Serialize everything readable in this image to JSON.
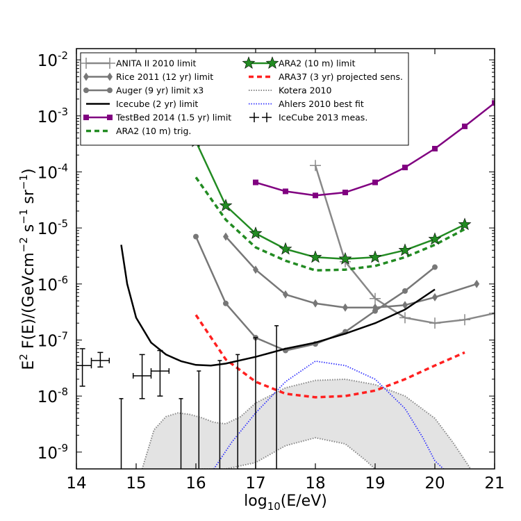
{
  "chart_data": {
    "type": "line",
    "x_scale": "linear",
    "y_scale": "log",
    "xlim": [
      14,
      21
    ],
    "ylim_log10": [
      -9.3,
      -1.8
    ],
    "x_ticks": [
      "14",
      "15",
      "16",
      "17",
      "18",
      "19",
      "20",
      "21"
    ],
    "y_ticks": [
      {
        "base": "10",
        "exp": "-9"
      },
      {
        "base": "10",
        "exp": "-8"
      },
      {
        "base": "10",
        "exp": "-7"
      },
      {
        "base": "10",
        "exp": "-6"
      },
      {
        "base": "10",
        "exp": "-5"
      },
      {
        "base": "10",
        "exp": "-4"
      },
      {
        "base": "10",
        "exp": "-3"
      },
      {
        "base": "10",
        "exp": "-2"
      }
    ],
    "xlabel": {
      "pre": "log",
      "sub": "10",
      "post": "(E/eV)"
    },
    "ylabel": {
      "p1": "E",
      "s1": "2",
      "p2": " F(E)/(GeVcm",
      "s2": "−2",
      "p3": " s",
      "s3": "−1",
      "p4": " sr",
      "s4": "−1",
      "p5": ")"
    },
    "grid": false,
    "legend_position": "top",
    "series": [
      {
        "name": "ANITA II 2010 limit",
        "color": "#888888",
        "marker": "plus",
        "linewidth": 2.5,
        "points": [
          [
            18.0,
            0.00013
          ],
          [
            18.5,
            2.5e-06
          ],
          [
            19.0,
            5.5e-07
          ],
          [
            19.5,
            2.5e-07
          ],
          [
            20.0,
            2e-07
          ],
          [
            20.5,
            2.3e-07
          ],
          [
            21.0,
            3e-07
          ]
        ]
      },
      {
        "name": "Rice 2011 (12 yr) limit",
        "color": "#777777",
        "marker": "diamond",
        "linewidth": 2.5,
        "points": [
          [
            16.5,
            7e-06
          ],
          [
            17.0,
            1.8e-06
          ],
          [
            17.5,
            6.5e-07
          ],
          [
            18.0,
            4.5e-07
          ],
          [
            18.5,
            3.8e-07
          ],
          [
            19.0,
            3.8e-07
          ],
          [
            19.5,
            4.2e-07
          ],
          [
            20.0,
            5.8e-07
          ],
          [
            20.7,
            1e-06
          ]
        ]
      },
      {
        "name": "Auger (9 yr) limit x3",
        "color": "#777777",
        "marker": "circle",
        "linewidth": 2.5,
        "points": [
          [
            16.0,
            7e-06
          ],
          [
            16.5,
            4.5e-07
          ],
          [
            17.0,
            1.1e-07
          ],
          [
            17.5,
            6.5e-08
          ],
          [
            18.0,
            8.5e-08
          ],
          [
            18.5,
            1.4e-07
          ],
          [
            19.0,
            3.3e-07
          ],
          [
            19.5,
            7.5e-07
          ],
          [
            20.0,
            2e-06
          ]
        ]
      },
      {
        "name": "Icecube (2 yr) limit",
        "color": "#000000",
        "marker": "none",
        "linewidth": 2.5,
        "points": [
          [
            14.75,
            5e-06
          ],
          [
            14.85,
            1e-06
          ],
          [
            15.0,
            2.5e-07
          ],
          [
            15.25,
            9e-08
          ],
          [
            15.5,
            5.5e-08
          ],
          [
            15.75,
            4.2e-08
          ],
          [
            16.0,
            3.6e-08
          ],
          [
            16.25,
            3.5e-08
          ],
          [
            16.5,
            3.8e-08
          ],
          [
            17.0,
            5e-08
          ],
          [
            17.5,
            7e-08
          ],
          [
            18.0,
            9e-08
          ],
          [
            18.5,
            1.3e-07
          ],
          [
            19.0,
            2e-07
          ],
          [
            19.5,
            3.5e-07
          ],
          [
            20.0,
            8e-07
          ]
        ]
      },
      {
        "name": "TestBed 2014 (1.5 yr) limit",
        "color": "#800080",
        "marker": "square",
        "linewidth": 2.5,
        "points": [
          [
            17.0,
            6.5e-05
          ],
          [
            17.5,
            4.5e-05
          ],
          [
            18.0,
            3.8e-05
          ],
          [
            18.5,
            4.3e-05
          ],
          [
            19.0,
            6.5e-05
          ],
          [
            19.5,
            0.00012
          ],
          [
            20.0,
            0.00026
          ],
          [
            20.5,
            0.00065
          ],
          [
            21.0,
            0.0017
          ]
        ]
      },
      {
        "name": "ARA2 (10 m) trig.",
        "color": "#228b22",
        "marker": "none",
        "dash": "7,5",
        "linewidth": 3.5,
        "points": [
          [
            16.0,
            8e-05
          ],
          [
            16.5,
            1.4e-05
          ],
          [
            17.0,
            4.5e-06
          ],
          [
            17.5,
            2.6e-06
          ],
          [
            18.0,
            1.75e-06
          ],
          [
            18.5,
            1.8e-06
          ],
          [
            19.0,
            2.1e-06
          ],
          [
            19.5,
            3e-06
          ],
          [
            20.0,
            5e-06
          ],
          [
            20.5,
            9.5e-06
          ]
        ]
      },
      {
        "name": "ARA2 (10 m) limit",
        "color": "#228b22",
        "marker": "star",
        "linewidth": 2.5,
        "points": [
          [
            16.0,
            0.00035
          ],
          [
            16.5,
            2.5e-05
          ],
          [
            17.0,
            8e-06
          ],
          [
            17.5,
            4.2e-06
          ],
          [
            18.0,
            3e-06
          ],
          [
            18.5,
            2.8e-06
          ],
          [
            19.0,
            3e-06
          ],
          [
            19.5,
            4e-06
          ],
          [
            20.0,
            6.3e-06
          ],
          [
            20.5,
            1.15e-05
          ]
        ]
      },
      {
        "name": "ARA37 (3 yr) projected sens.",
        "color": "#ff2020",
        "marker": "none",
        "dash": "7,5",
        "linewidth": 3.5,
        "points": [
          [
            16.0,
            2.8e-07
          ],
          [
            16.5,
            4.5e-08
          ],
          [
            17.0,
            1.8e-08
          ],
          [
            17.5,
            1.1e-08
          ],
          [
            18.0,
            9.5e-09
          ],
          [
            18.5,
            1e-08
          ],
          [
            19.0,
            1.25e-08
          ],
          [
            19.5,
            2e-08
          ],
          [
            20.0,
            3.5e-08
          ],
          [
            20.5,
            6e-08
          ]
        ]
      },
      {
        "name": "Kotera 2010",
        "color": "#888888",
        "marker": "none",
        "dash": "1.5,2",
        "linewidth": 2,
        "band_upper": [
          [
            15.1,
            5e-10
          ],
          [
            15.3,
            2.5e-09
          ],
          [
            15.5,
            4.3e-09
          ],
          [
            15.7,
            5e-09
          ],
          [
            15.9,
            4.7e-09
          ],
          [
            16.1,
            4.1e-09
          ],
          [
            16.3,
            3.4e-09
          ],
          [
            16.5,
            3.2e-09
          ],
          [
            16.75,
            4.3e-09
          ],
          [
            17.0,
            7.5e-09
          ],
          [
            17.5,
            1.4e-08
          ],
          [
            18.0,
            1.9e-08
          ],
          [
            18.5,
            2e-08
          ],
          [
            19.0,
            1.6e-08
          ],
          [
            19.5,
            1e-08
          ],
          [
            20.0,
            4e-09
          ],
          [
            20.3,
            1.5e-09
          ],
          [
            20.6,
            5e-10
          ]
        ],
        "band_lower": [
          [
            16.1,
            5e-10
          ],
          [
            16.5,
            5e-10
          ],
          [
            17.0,
            6.5e-10
          ],
          [
            17.5,
            1.3e-09
          ],
          [
            18.0,
            1.8e-09
          ],
          [
            18.5,
            1.4e-09
          ],
          [
            18.85,
            7e-10
          ],
          [
            19.0,
            5e-10
          ]
        ]
      },
      {
        "name": "Ahlers 2010 best fit",
        "color": "#3030ff",
        "marker": "none",
        "dash": "1.5,2",
        "linewidth": 1.8,
        "points": [
          [
            16.3,
            5e-10
          ],
          [
            16.6,
            1.5e-09
          ],
          [
            17.0,
            5e-09
          ],
          [
            17.5,
            1.8e-08
          ],
          [
            18.0,
            4.2e-08
          ],
          [
            18.5,
            3.5e-08
          ],
          [
            19.0,
            2e-08
          ],
          [
            19.5,
            6e-09
          ],
          [
            19.8,
            1.8e-09
          ],
          [
            20.0,
            7e-10
          ],
          [
            20.3,
            3.5e-10
          ]
        ]
      },
      {
        "name": "IceCube 2013 meas.",
        "color": "#000000",
        "marker": "errorbar",
        "points": [
          [
            14.1,
            3.5e-08
          ],
          [
            14.4,
            4.3e-08
          ],
          [
            15.1,
            2.3e-08
          ],
          [
            15.4,
            2.8e-08
          ]
        ],
        "xerr": 0.15,
        "yerr_low": [
          1.5e-08,
          3.3e-08,
          9e-09,
          1e-08
        ],
        "yerr_high": [
          7e-08,
          6e-08,
          5.5e-08,
          6.5e-08
        ],
        "upper_limits_x": [
          14.75,
          15.75,
          16.05,
          16.4,
          16.7,
          17.0,
          17.35
        ],
        "upper_limits_top": [
          9e-09,
          9e-09,
          2.8e-08,
          4.3e-08,
          5.5e-08,
          1.1e-07,
          1.8e-07
        ]
      }
    ]
  }
}
